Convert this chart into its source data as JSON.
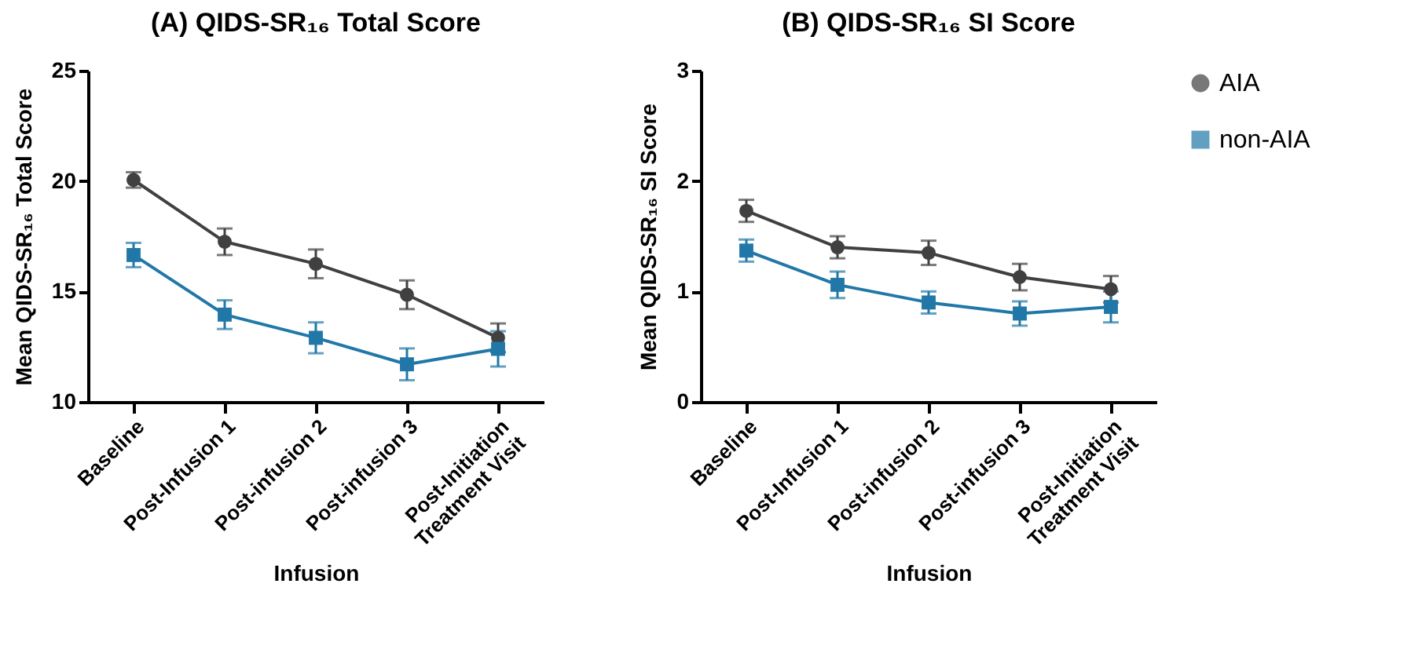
{
  "chart_data": [
    {
      "type": "line",
      "title": "(A)   QIDS-SR₁₆ Total Score",
      "xlabel": "Infusion",
      "ylabel": "Mean QIDS-SR₁₆ Total Score",
      "categories": [
        "Baseline",
        "Post-Infusion 1",
        "Post-infusion 2",
        "Post-infusion 3",
        "Post-Initiation\nTreatment Visit"
      ],
      "series": [
        {
          "color": "#404040",
          "marker": "circle",
          "values": [
            20.05,
            17.25,
            16.25,
            14.85,
            12.9
          ],
          "errors": [
            0.35,
            0.6,
            0.65,
            0.65,
            0.65
          ]
        },
        {
          "color": "#2178a8",
          "marker": "square",
          "values": [
            16.65,
            13.95,
            12.9,
            11.7,
            12.4
          ],
          "errors": [
            0.55,
            0.65,
            0.7,
            0.72,
            0.8
          ]
        }
      ],
      "ylim": [
        10,
        25
      ],
      "yticks": [
        10,
        15,
        20,
        25
      ],
      "grid": false,
      "legend": false
    },
    {
      "type": "line",
      "title": "(B)   QIDS-SR₁₆ SI Score",
      "xlabel": "Infusion",
      "ylabel": "Mean QIDS-SR₁₆ SI Score",
      "categories": [
        "Baseline",
        "Post-Infusion 1",
        "Post-infusion 2",
        "Post-infusion 3",
        "Post-Initiation\nTreatment Visit"
      ],
      "series": [
        {
          "name": "AIA",
          "color": "#404040",
          "marker": "circle",
          "values": [
            1.73,
            1.4,
            1.35,
            1.13,
            1.02
          ],
          "errors": [
            0.1,
            0.1,
            0.11,
            0.12,
            0.12
          ]
        },
        {
          "name": "non-AIA",
          "color": "#2178a8",
          "marker": "square",
          "values": [
            1.37,
            1.06,
            0.9,
            0.8,
            0.86
          ],
          "errors": [
            0.1,
            0.12,
            0.1,
            0.11,
            0.14
          ]
        }
      ],
      "ylim": [
        0,
        3
      ],
      "yticks": [
        0,
        1,
        2,
        3
      ],
      "grid": false,
      "legend": "top right"
    }
  ]
}
